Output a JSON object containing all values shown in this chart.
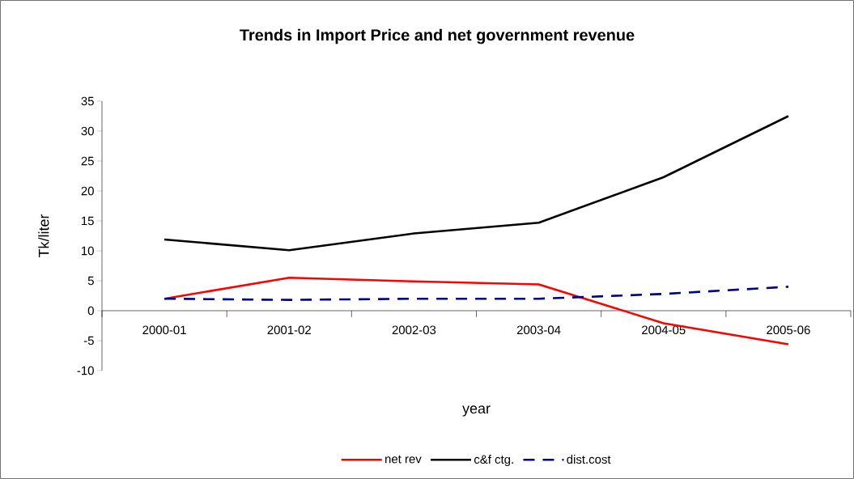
{
  "chart_data": {
    "type": "line",
    "title": "Trends in Import Price and net government revenue",
    "xlabel": "year",
    "ylabel": "Tk/liter",
    "categories": [
      "2000-01",
      "2001-02",
      "2002-03",
      "2003-04",
      "2004-05",
      "2005-06"
    ],
    "series": [
      {
        "name": "net rev",
        "color": "#ff0000",
        "line_style": "solid",
        "values": [
          2.0,
          5.5,
          4.9,
          4.4,
          -2.1,
          -5.6
        ]
      },
      {
        "name": "c&f ctg.",
        "color": "#000000",
        "line_style": "solid",
        "values": [
          11.9,
          10.1,
          12.9,
          14.7,
          22.3,
          32.5
        ]
      },
      {
        "name": "dist.cost",
        "color": "#000080",
        "line_style": "dashed",
        "values": [
          2.0,
          1.8,
          2.0,
          2.0,
          2.8,
          4.0
        ]
      }
    ],
    "ylim": [
      -10,
      35
    ],
    "yticks": [
      -10,
      -5,
      0,
      5,
      10,
      15,
      20,
      25,
      30,
      35
    ],
    "grid": false,
    "legend": "bottom",
    "marker": "none"
  }
}
